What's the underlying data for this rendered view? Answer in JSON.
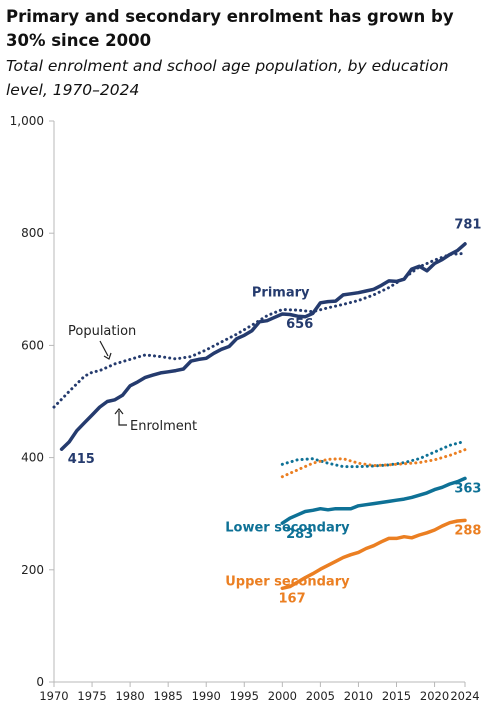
{
  "header": {
    "title": "Primary and secondary enrolment has grown by 30% since 2000",
    "subtitle": "Total enrolment and school age population, by education level, 1970–2024"
  },
  "colors": {
    "primary": "#253b6e",
    "lower_secondary": "#0e7196",
    "upper_secondary": "#eb7f22",
    "axis": "#b8b8b8",
    "text": "#222222"
  },
  "chart_data": {
    "type": "line",
    "title": "Primary and secondary enrolment has grown by 30% since 2000",
    "subtitle": "Total enrolment and school age population, by education level, 1970–2024",
    "xlabel": "",
    "ylabel": "",
    "xlim": [
      1970,
      2024
    ],
    "ylim": [
      0,
      1000
    ],
    "x_ticks": [
      1970,
      1975,
      1980,
      1985,
      1990,
      1995,
      2000,
      2005,
      2010,
      2015,
      2020,
      2024
    ],
    "y_ticks": [
      0,
      200,
      400,
      600,
      800,
      1000
    ],
    "y_tick_labels": [
      "0",
      "200",
      "400",
      "600",
      "800",
      "1,000"
    ],
    "grid": false,
    "series": [
      {
        "name": "Primary",
        "level": "primary",
        "kind": "enrolment",
        "style": "solid",
        "x": [
          1971,
          1972,
          1973,
          1974,
          1975,
          1976,
          1977,
          1978,
          1979,
          1980,
          1981,
          1982,
          1983,
          1984,
          1985,
          1986,
          1987,
          1988,
          1989,
          1990,
          1991,
          1992,
          1993,
          1994,
          1995,
          1996,
          1997,
          1998,
          1999,
          2000,
          2001,
          2002,
          2003,
          2004,
          2005,
          2006,
          2007,
          2008,
          2009,
          2010,
          2011,
          2012,
          2013,
          2014,
          2015,
          2016,
          2017,
          2018,
          2019,
          2020,
          2021,
          2022,
          2023,
          2024
        ],
        "values": [
          415,
          428,
          448,
          462,
          476,
          490,
          500,
          503,
          511,
          528,
          535,
          543,
          547,
          551,
          553,
          555,
          558,
          572,
          575,
          577,
          586,
          593,
          598,
          612,
          618,
          626,
          642,
          644,
          650,
          656,
          655,
          652,
          651,
          657,
          676,
          678,
          679,
          690,
          692,
          694,
          697,
          700,
          707,
          715,
          714,
          718,
          736,
          741,
          733,
          746,
          753,
          762,
          769,
          781
        ]
      },
      {
        "name": "Primary population",
        "level": "primary",
        "kind": "population",
        "style": "dotted",
        "x": [
          1970,
          1972,
          1974,
          1975,
          1976,
          1978,
          1980,
          1982,
          1984,
          1986,
          1988,
          1990,
          1992,
          1994,
          1996,
          1998,
          2000,
          2002,
          2004,
          2006,
          2008,
          2010,
          2012,
          2014,
          2016,
          2018,
          2020,
          2022,
          2024
        ],
        "values": [
          490,
          518,
          545,
          552,
          555,
          567,
          575,
          583,
          580,
          576,
          580,
          592,
          606,
          620,
          636,
          653,
          664,
          663,
          660,
          667,
          673,
          680,
          690,
          703,
          720,
          740,
          752,
          762,
          764
        ]
      },
      {
        "name": "Lower secondary",
        "level": "lower_secondary",
        "kind": "enrolment",
        "style": "solid",
        "x": [
          2000,
          2001,
          2002,
          2003,
          2004,
          2005,
          2006,
          2007,
          2008,
          2009,
          2010,
          2011,
          2012,
          2013,
          2014,
          2015,
          2016,
          2017,
          2018,
          2019,
          2020,
          2021,
          2022,
          2023,
          2024
        ],
        "values": [
          283,
          292,
          298,
          304,
          306,
          309,
          307,
          309,
          309,
          309,
          314,
          316,
          318,
          320,
          322,
          324,
          326,
          329,
          333,
          337,
          343,
          347,
          353,
          357,
          363
        ]
      },
      {
        "name": "Lower secondary population",
        "level": "lower_secondary",
        "kind": "population",
        "style": "dotted",
        "x": [
          2000,
          2002,
          2004,
          2006,
          2008,
          2010,
          2012,
          2014,
          2016,
          2018,
          2020,
          2022,
          2024
        ],
        "values": [
          388,
          396,
          398,
          390,
          384,
          384,
          385,
          387,
          391,
          398,
          410,
          422,
          429
        ]
      },
      {
        "name": "Upper secondary",
        "level": "upper_secondary",
        "kind": "enrolment",
        "style": "solid",
        "x": [
          2000,
          2001,
          2002,
          2003,
          2004,
          2005,
          2006,
          2007,
          2008,
          2009,
          2010,
          2011,
          2012,
          2013,
          2014,
          2015,
          2016,
          2017,
          2018,
          2019,
          2020,
          2021,
          2022,
          2023,
          2024
        ],
        "values": [
          167,
          170,
          178,
          186,
          193,
          201,
          208,
          215,
          222,
          227,
          231,
          238,
          243,
          250,
          256,
          256,
          259,
          257,
          262,
          266,
          271,
          278,
          284,
          287,
          288
        ]
      },
      {
        "name": "Upper secondary population",
        "level": "upper_secondary",
        "kind": "population",
        "style": "dotted",
        "x": [
          2000,
          2002,
          2004,
          2006,
          2008,
          2010,
          2012,
          2014,
          2016,
          2018,
          2020,
          2022,
          2024
        ],
        "values": [
          366,
          378,
          390,
          397,
          398,
          390,
          386,
          387,
          389,
          391,
          396,
          404,
          414
        ]
      }
    ],
    "annotations": {
      "population_label": "Population",
      "enrolment_label": "Enrolment",
      "series_labels": [
        {
          "level": "primary",
          "text": "Primary",
          "x": 1996,
          "y": 687
        },
        {
          "level": "lower_secondary",
          "text": "Lower secondary",
          "x": 1992.5,
          "y": 268
        },
        {
          "level": "upper_secondary",
          "text": "Upper secondary",
          "x": 1992.5,
          "y": 172
        }
      ],
      "value_labels": [
        {
          "level": "primary",
          "text": "415",
          "x": 1971.8,
          "y": 390
        },
        {
          "level": "primary",
          "text": "656",
          "x": 2000.5,
          "y": 631
        },
        {
          "level": "primary",
          "text": "781",
          "x": 2022.6,
          "y": 808
        },
        {
          "level": "lower_secondary",
          "text": "363",
          "x": 2022.6,
          "y": 338
        },
        {
          "level": "lower_secondary",
          "text": "283",
          "x": 2000.5,
          "y": 257
        },
        {
          "level": "upper_secondary",
          "text": "288",
          "x": 2022.6,
          "y": 263
        },
        {
          "level": "upper_secondary",
          "text": "167",
          "x": 1999.5,
          "y": 142
        }
      ]
    }
  }
}
